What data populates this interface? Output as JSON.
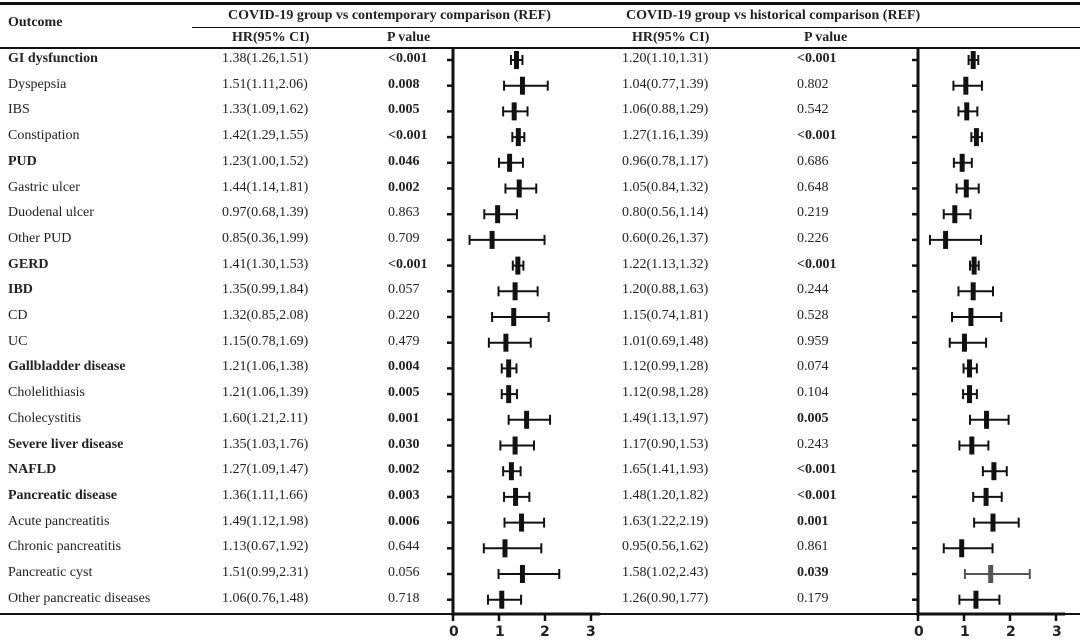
{
  "headers": {
    "outcome": "Outcome",
    "group1": "COVID-19 group vs contemporary comparison (REF)",
    "group2": "COVID-19 group vs historical comparison (REF)",
    "hr": "HR(95% CI)",
    "p": "P value"
  },
  "axis_ticks": [
    "0",
    "1",
    "2",
    "3"
  ],
  "colors": {
    "marker": "#111111",
    "marker_grey": "#555555"
  },
  "rows": [
    {
      "outcome": "GI dysfunction",
      "bold": true,
      "c": {
        "hr": 1.38,
        "lo": 1.26,
        "hi": 1.51,
        "text": "1.38(1.26,1.51)",
        "p": "<0.001",
        "sig": true
      },
      "h": {
        "hr": 1.2,
        "lo": 1.1,
        "hi": 1.31,
        "text": "1.20(1.10,1.31)",
        "p": "<0.001",
        "sig": true
      }
    },
    {
      "outcome": "Dyspepsia",
      "bold": false,
      "c": {
        "hr": 1.51,
        "lo": 1.11,
        "hi": 2.06,
        "text": "1.51(1.11,2.06)",
        "p": "0.008",
        "sig": true
      },
      "h": {
        "hr": 1.04,
        "lo": 0.77,
        "hi": 1.39,
        "text": "1.04(0.77,1.39)",
        "p": "0.802",
        "sig": false
      }
    },
    {
      "outcome": "IBS",
      "bold": false,
      "c": {
        "hr": 1.33,
        "lo": 1.09,
        "hi": 1.62,
        "text": "1.33(1.09,1.62)",
        "p": "0.005",
        "sig": true
      },
      "h": {
        "hr": 1.06,
        "lo": 0.88,
        "hi": 1.29,
        "text": "1.06(0.88,1.29)",
        "p": "0.542",
        "sig": false
      }
    },
    {
      "outcome": "Constipation",
      "bold": false,
      "c": {
        "hr": 1.42,
        "lo": 1.29,
        "hi": 1.55,
        "text": "1.42(1.29,1.55)",
        "p": "<0.001",
        "sig": true
      },
      "h": {
        "hr": 1.27,
        "lo": 1.16,
        "hi": 1.39,
        "text": "1.27(1.16,1.39)",
        "p": "<0.001",
        "sig": true
      }
    },
    {
      "outcome": "PUD",
      "bold": true,
      "c": {
        "hr": 1.23,
        "lo": 1.0,
        "hi": 1.52,
        "text": "1.23(1.00,1.52)",
        "p": "0.046",
        "sig": true
      },
      "h": {
        "hr": 0.96,
        "lo": 0.78,
        "hi": 1.17,
        "text": "0.96(0.78,1.17)",
        "p": "0.686",
        "sig": false
      }
    },
    {
      "outcome": "Gastric ulcer",
      "bold": false,
      "c": {
        "hr": 1.44,
        "lo": 1.14,
        "hi": 1.81,
        "text": "1.44(1.14,1.81)",
        "p": "0.002",
        "sig": true
      },
      "h": {
        "hr": 1.05,
        "lo": 0.84,
        "hi": 1.32,
        "text": "1.05(0.84,1.32)",
        "p": "0.648",
        "sig": false
      }
    },
    {
      "outcome": "Duodenal ulcer",
      "bold": false,
      "c": {
        "hr": 0.97,
        "lo": 0.68,
        "hi": 1.39,
        "text": "0.97(0.68,1.39)",
        "p": "0.863",
        "sig": false
      },
      "h": {
        "hr": 0.8,
        "lo": 0.56,
        "hi": 1.14,
        "text": "0.80(0.56,1.14)",
        "p": "0.219",
        "sig": false
      }
    },
    {
      "outcome": "Other PUD",
      "bold": false,
      "c": {
        "hr": 0.85,
        "lo": 0.36,
        "hi": 1.99,
        "text": "0.85(0.36,1.99)",
        "p": "0.709",
        "sig": false
      },
      "h": {
        "hr": 0.6,
        "lo": 0.26,
        "hi": 1.37,
        "text": "0.60(0.26,1.37)",
        "p": "0.226",
        "sig": false
      }
    },
    {
      "outcome": "GERD",
      "bold": true,
      "c": {
        "hr": 1.41,
        "lo": 1.3,
        "hi": 1.53,
        "text": "1.41(1.30,1.53)",
        "p": "<0.001",
        "sig": true
      },
      "h": {
        "hr": 1.22,
        "lo": 1.13,
        "hi": 1.32,
        "text": "1.22(1.13,1.32)",
        "p": "<0.001",
        "sig": true
      }
    },
    {
      "outcome": "IBD",
      "bold": true,
      "c": {
        "hr": 1.35,
        "lo": 0.99,
        "hi": 1.84,
        "text": "1.35(0.99,1.84)",
        "p": "0.057",
        "sig": false
      },
      "h": {
        "hr": 1.2,
        "lo": 0.88,
        "hi": 1.63,
        "text": "1.20(0.88,1.63)",
        "p": "0.244",
        "sig": false
      }
    },
    {
      "outcome": "CD",
      "bold": false,
      "c": {
        "hr": 1.32,
        "lo": 0.85,
        "hi": 2.08,
        "text": "1.32(0.85,2.08)",
        "p": "0.220",
        "sig": false
      },
      "h": {
        "hr": 1.15,
        "lo": 0.74,
        "hi": 1.81,
        "text": "1.15(0.74,1.81)",
        "p": "0.528",
        "sig": false
      }
    },
    {
      "outcome": "UC",
      "bold": false,
      "c": {
        "hr": 1.15,
        "lo": 0.78,
        "hi": 1.69,
        "text": "1.15(0.78,1.69)",
        "p": "0.479",
        "sig": false
      },
      "h": {
        "hr": 1.01,
        "lo": 0.69,
        "hi": 1.48,
        "text": "1.01(0.69,1.48)",
        "p": "0.959",
        "sig": false
      }
    },
    {
      "outcome": "Gallbladder disease",
      "bold": true,
      "c": {
        "hr": 1.21,
        "lo": 1.06,
        "hi": 1.38,
        "text": "1.21(1.06,1.38)",
        "p": "0.004",
        "sig": true
      },
      "h": {
        "hr": 1.12,
        "lo": 0.99,
        "hi": 1.28,
        "text": "1.12(0.99,1.28)",
        "p": "0.074",
        "sig": false
      }
    },
    {
      "outcome": "Cholelithiasis",
      "bold": false,
      "c": {
        "hr": 1.21,
        "lo": 1.06,
        "hi": 1.39,
        "text": "1.21(1.06,1.39)",
        "p": "0.005",
        "sig": true
      },
      "h": {
        "hr": 1.12,
        "lo": 0.98,
        "hi": 1.28,
        "text": "1.12(0.98,1.28)",
        "p": "0.104",
        "sig": false
      }
    },
    {
      "outcome": "Cholecystitis",
      "bold": false,
      "c": {
        "hr": 1.6,
        "lo": 1.21,
        "hi": 2.11,
        "text": "1.60(1.21,2.11)",
        "p": "0.001",
        "sig": true
      },
      "h": {
        "hr": 1.49,
        "lo": 1.13,
        "hi": 1.97,
        "text": "1.49(1.13,1.97)",
        "p": "0.005",
        "sig": true
      }
    },
    {
      "outcome": "Severe liver disease",
      "bold": true,
      "c": {
        "hr": 1.35,
        "lo": 1.03,
        "hi": 1.76,
        "text": "1.35(1.03,1.76)",
        "p": "0.030",
        "sig": true
      },
      "h": {
        "hr": 1.17,
        "lo": 0.9,
        "hi": 1.53,
        "text": "1.17(0.90,1.53)",
        "p": "0.243",
        "sig": false
      }
    },
    {
      "outcome": "NAFLD",
      "bold": true,
      "c": {
        "hr": 1.27,
        "lo": 1.09,
        "hi": 1.47,
        "text": "1.27(1.09,1.47)",
        "p": "0.002",
        "sig": true
      },
      "h": {
        "hr": 1.65,
        "lo": 1.41,
        "hi": 1.93,
        "text": "1.65(1.41,1.93)",
        "p": "<0.001",
        "sig": true
      }
    },
    {
      "outcome": "Pancreatic disease",
      "bold": true,
      "c": {
        "hr": 1.36,
        "lo": 1.11,
        "hi": 1.66,
        "text": "1.36(1.11,1.66)",
        "p": "0.003",
        "sig": true
      },
      "h": {
        "hr": 1.48,
        "lo": 1.2,
        "hi": 1.82,
        "text": "1.48(1.20,1.82)",
        "p": "<0.001",
        "sig": true
      }
    },
    {
      "outcome": "Acute pancreatitis",
      "bold": false,
      "c": {
        "hr": 1.49,
        "lo": 1.12,
        "hi": 1.98,
        "text": "1.49(1.12,1.98)",
        "p": "0.006",
        "sig": true
      },
      "h": {
        "hr": 1.63,
        "lo": 1.22,
        "hi": 2.19,
        "text": "1.63(1.22,2.19)",
        "p": "0.001",
        "sig": true
      }
    },
    {
      "outcome": "Chronic pancreatitis",
      "bold": false,
      "c": {
        "hr": 1.13,
        "lo": 0.67,
        "hi": 1.92,
        "text": "1.13(0.67,1.92)",
        "p": "0.644",
        "sig": false
      },
      "h": {
        "hr": 0.95,
        "lo": 0.56,
        "hi": 1.62,
        "text": "0.95(0.56,1.62)",
        "p": "0.861",
        "sig": false
      }
    },
    {
      "outcome": "Pancreatic cyst",
      "bold": false,
      "c": {
        "hr": 1.51,
        "lo": 0.99,
        "hi": 2.31,
        "text": "1.51(0.99,2.31)",
        "p": "0.056",
        "sig": false
      },
      "h": {
        "hr": 1.58,
        "lo": 1.02,
        "hi": 2.43,
        "text": "1.58(1.02,2.43)",
        "p": "0.039",
        "sig": true,
        "grey": true
      }
    },
    {
      "outcome": "Other pancreatic diseases",
      "bold": false,
      "c": {
        "hr": 1.06,
        "lo": 0.76,
        "hi": 1.48,
        "text": "1.06(0.76,1.48)",
        "p": "0.718",
        "sig": false
      },
      "h": {
        "hr": 1.26,
        "lo": 0.9,
        "hi": 1.77,
        "text": "1.26(0.90,1.77)",
        "p": "0.179",
        "sig": false
      }
    }
  ]
}
